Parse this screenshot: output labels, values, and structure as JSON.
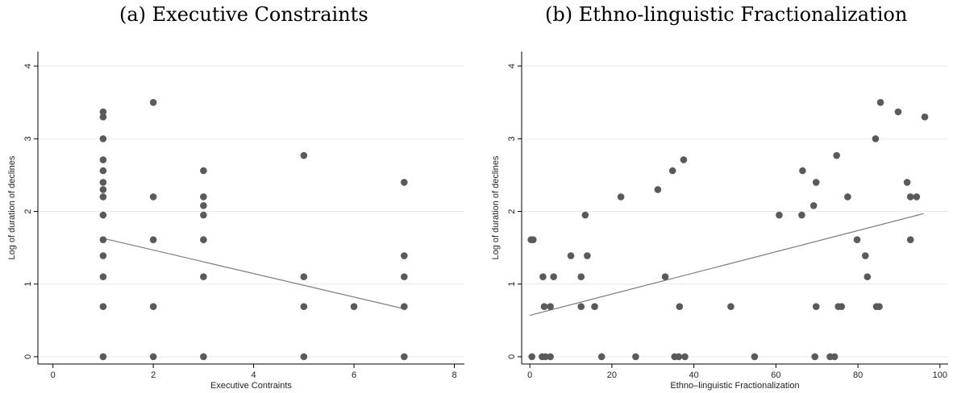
{
  "chart_data": [
    {
      "type": "scatter",
      "panel_title": "(a) Executive Constraints",
      "xlabel": "Executive Contraints",
      "ylabel": "Log of duration of declines",
      "xlim": [
        -0.3,
        8.2
      ],
      "ylim": [
        -0.1,
        4.2
      ],
      "xticks": [
        "0",
        "2",
        "4",
        "6",
        "8"
      ],
      "yticks": [
        "0",
        "1",
        "2",
        "3",
        "4"
      ],
      "grid": "horizontal",
      "points": [
        [
          1,
          3.37
        ],
        [
          1,
          3.3
        ],
        [
          1,
          3.0
        ],
        [
          1,
          2.71
        ],
        [
          1,
          2.56
        ],
        [
          1,
          2.4
        ],
        [
          1,
          2.3
        ],
        [
          1,
          2.2
        ],
        [
          1,
          1.95
        ],
        [
          1,
          1.61
        ],
        [
          1,
          1.39
        ],
        [
          1,
          1.1
        ],
        [
          1,
          0.69
        ],
        [
          1,
          0
        ],
        [
          2,
          3.5
        ],
        [
          2,
          2.2
        ],
        [
          2,
          1.61
        ],
        [
          2,
          0.69
        ],
        [
          2,
          0
        ],
        [
          3,
          2.56
        ],
        [
          3,
          2.2
        ],
        [
          3,
          2.08
        ],
        [
          3,
          1.95
        ],
        [
          3,
          1.61
        ],
        [
          3,
          1.1
        ],
        [
          3,
          0
        ],
        [
          5,
          2.77
        ],
        [
          5,
          1.1
        ],
        [
          5,
          0.69
        ],
        [
          5,
          0
        ],
        [
          6,
          0.69
        ],
        [
          7,
          2.4
        ],
        [
          7,
          1.39
        ],
        [
          7,
          1.1
        ],
        [
          7,
          0.69
        ],
        [
          7,
          0
        ]
      ],
      "fit_line": [
        [
          1,
          1.63
        ],
        [
          7,
          0.66
        ]
      ]
    },
    {
      "type": "scatter",
      "panel_title": "(b) Ethno-linguistic Fractionalization",
      "xlabel": "Ethno–linguistic Fractionalization",
      "ylabel": "Log of duration of declines",
      "xlim": [
        -2,
        102
      ],
      "ylim": [
        -0.1,
        4.2
      ],
      "xticks": [
        "0",
        "20",
        "40",
        "60",
        "80",
        "100"
      ],
      "yticks": [
        "0",
        "1",
        "2",
        "3",
        "4"
      ],
      "grid": "horizontal",
      "points": [
        [
          0.3,
          1.61
        ],
        [
          0.8,
          1.61
        ],
        [
          0.5,
          0
        ],
        [
          3,
          0
        ],
        [
          3.8,
          0
        ],
        [
          5,
          0
        ],
        [
          3.2,
          1.1
        ],
        [
          3.5,
          0.69
        ],
        [
          5,
          0.69
        ],
        [
          5.8,
          1.1
        ],
        [
          10,
          1.39
        ],
        [
          12.5,
          1.1
        ],
        [
          12.5,
          0.69
        ],
        [
          13.5,
          1.95
        ],
        [
          14,
          1.39
        ],
        [
          15.8,
          0.69
        ],
        [
          17.5,
          0
        ],
        [
          22.2,
          2.2
        ],
        [
          25.8,
          0
        ],
        [
          31.2,
          2.3
        ],
        [
          33,
          1.1
        ],
        [
          34.8,
          2.56
        ],
        [
          35.3,
          0
        ],
        [
          36.5,
          0.69
        ],
        [
          36.3,
          0
        ],
        [
          37.5,
          2.71
        ],
        [
          37.8,
          0
        ],
        [
          49,
          0.69
        ],
        [
          54.8,
          0
        ],
        [
          60.8,
          1.95
        ],
        [
          66.3,
          1.95
        ],
        [
          66.5,
          2.56
        ],
        [
          69.2,
          2.08
        ],
        [
          69.5,
          0
        ],
        [
          69.8,
          0.69
        ],
        [
          69.8,
          2.4
        ],
        [
          73.2,
          0
        ],
        [
          74.3,
          0
        ],
        [
          74.8,
          2.77
        ],
        [
          75.2,
          0.69
        ],
        [
          76,
          0.69
        ],
        [
          77.5,
          2.2
        ],
        [
          79.8,
          1.61
        ],
        [
          81.8,
          1.39
        ],
        [
          82.3,
          1.1
        ],
        [
          84.3,
          3.0
        ],
        [
          84.5,
          0.69
        ],
        [
          85.2,
          0.69
        ],
        [
          85.5,
          3.5
        ],
        [
          89.8,
          3.37
        ],
        [
          92,
          2.4
        ],
        [
          92.8,
          2.2
        ],
        [
          92.8,
          1.61
        ],
        [
          94.3,
          2.2
        ],
        [
          96.3,
          3.3
        ]
      ],
      "fit_line": [
        [
          0,
          0.57
        ],
        [
          96,
          1.97
        ]
      ]
    }
  ]
}
